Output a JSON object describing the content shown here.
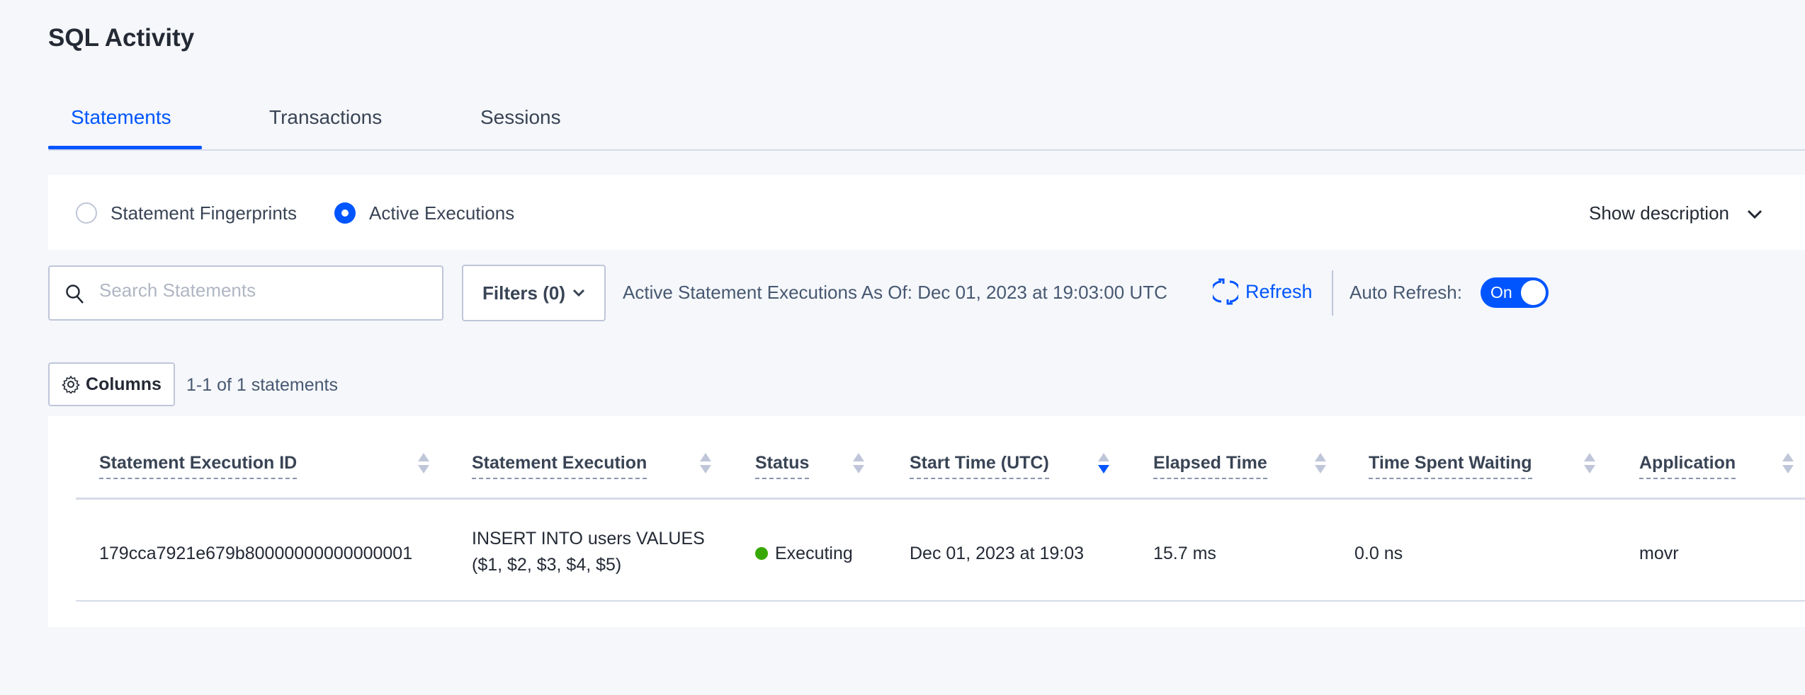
{
  "page_title": "SQL Activity",
  "tabs": [
    {
      "label": "Statements",
      "active": true
    },
    {
      "label": "Transactions",
      "active": false
    },
    {
      "label": "Sessions",
      "active": false
    }
  ],
  "view_options": [
    {
      "label": "Statement Fingerprints",
      "selected": false
    },
    {
      "label": "Active Executions",
      "selected": true
    }
  ],
  "show_description": "Show description",
  "search": {
    "placeholder": "Search Statements",
    "value": ""
  },
  "filters_label": "Filters (0)",
  "as_of_text": "Active Statement Executions As Of: Dec 01, 2023 at 19:03:00 UTC",
  "refresh_label": "Refresh",
  "auto_refresh": {
    "label": "Auto Refresh:",
    "state": "On"
  },
  "columns_label": "Columns",
  "result_count": "1-1 of 1 statements",
  "table": {
    "headers": [
      "Statement Execution ID",
      "Statement Execution",
      "Status",
      "Start Time (UTC)",
      "Elapsed Time",
      "Time Spent Waiting",
      "Application"
    ],
    "sorted_column": "Start Time (UTC)",
    "sort_direction": "descending",
    "rows": [
      {
        "id": "179cca7921e679b80000000000000001",
        "statement_line1": "INSERT INTO users VALUES",
        "statement_line2": "($1, $2, $3, $4, $5)",
        "status": "Executing",
        "start_time": "Dec 01, 2023 at 19:03",
        "elapsed": "15.7 ms",
        "waiting": "0.0 ns",
        "application": "movr"
      }
    ]
  },
  "colors": {
    "accent": "#0055ff",
    "status_executing": "#37a806",
    "background": "#f5f7fa"
  }
}
